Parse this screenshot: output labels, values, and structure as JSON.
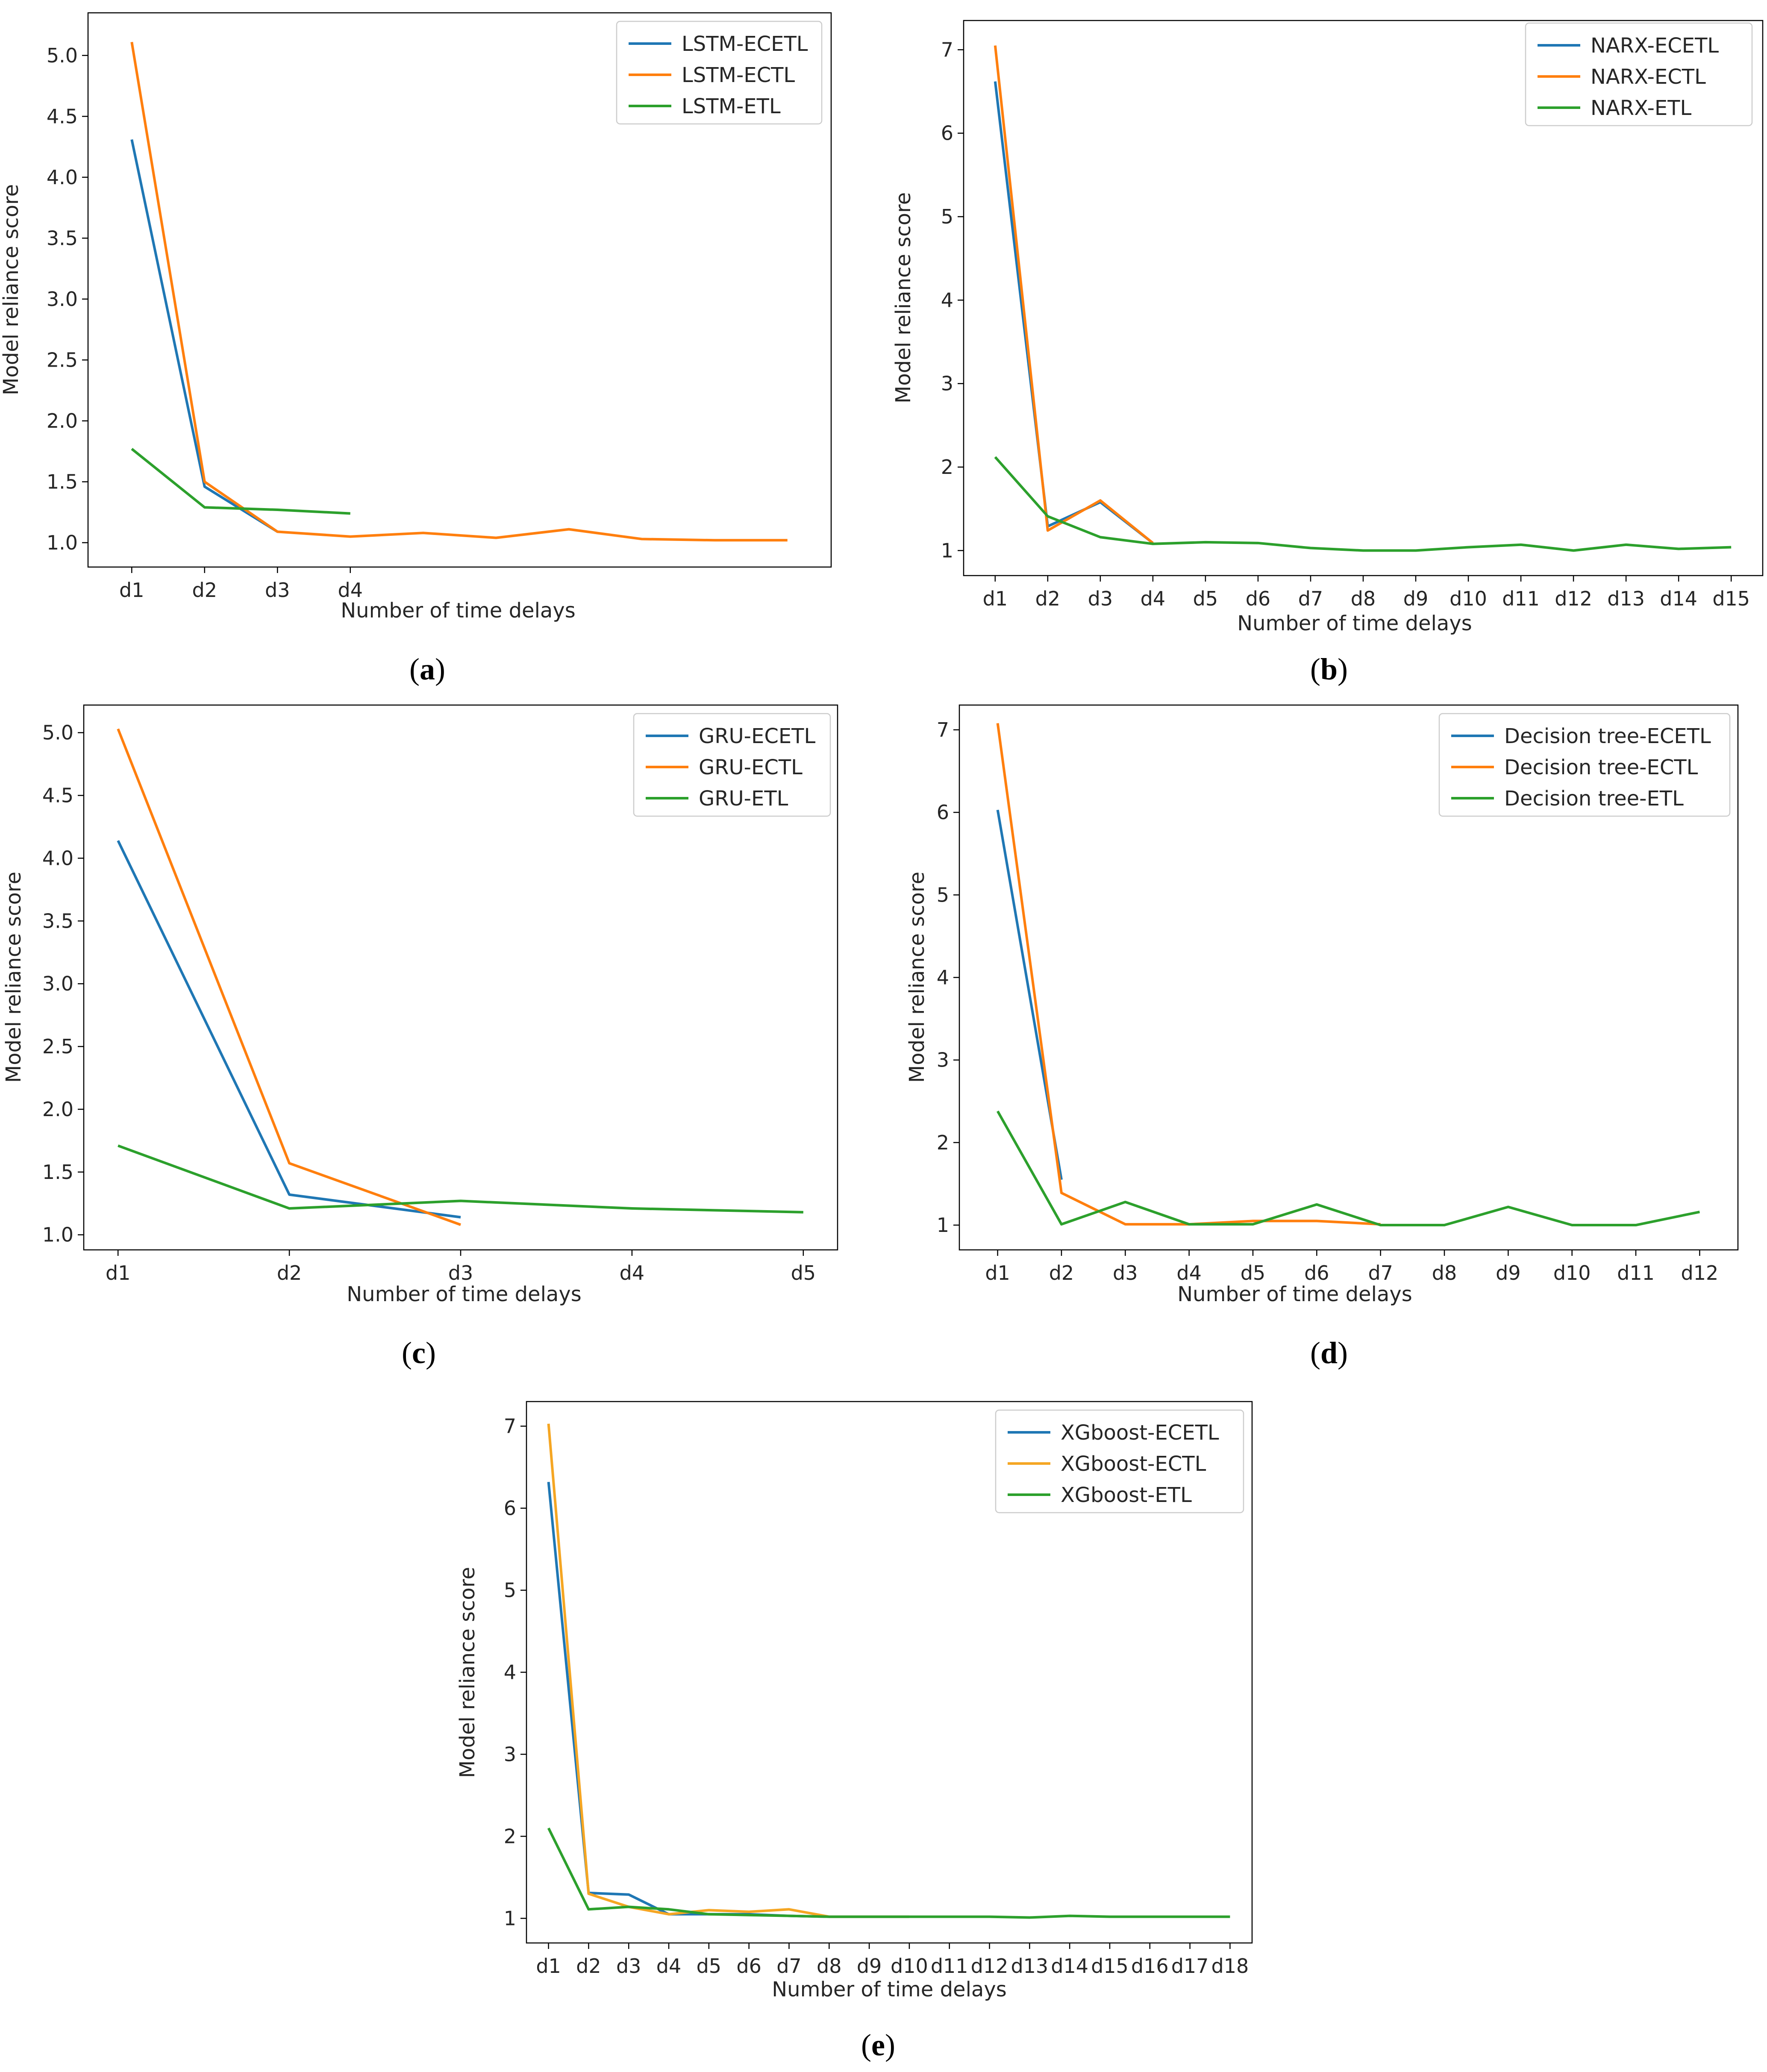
{
  "figure": {
    "captions": [
      {
        "open": "(",
        "letter": "a",
        "close": ")"
      },
      {
        "open": "(",
        "letter": "b",
        "close": ")"
      },
      {
        "open": "(",
        "letter": "c",
        "close": ")"
      },
      {
        "open": "(",
        "letter": "d",
        "close": ")"
      },
      {
        "open": "(",
        "letter": "e",
        "close": ")"
      }
    ]
  },
  "chart_data": [
    {
      "type": "line",
      "title": "",
      "xlabel": "Number of time delays",
      "ylabel": "Model reliance score",
      "categories": [
        "d1",
        "d2",
        "d3",
        "d4"
      ],
      "x_extent": 10,
      "ylim": [
        0.8,
        5.35
      ],
      "yticks": [
        1.0,
        1.5,
        2.0,
        2.5,
        3.0,
        3.5,
        4.0,
        4.5,
        5.0
      ],
      "ytick_labels": [
        "1.0",
        "1.5",
        "2.0",
        "2.5",
        "3.0",
        "3.5",
        "4.0",
        "4.5",
        "5.0"
      ],
      "grid": false,
      "legend_position": "top-right",
      "series": [
        {
          "name": "LSTM-ECETL",
          "color": "#1f77b4",
          "x": [
            1,
            2,
            3
          ],
          "values": [
            4.31,
            1.46,
            1.09
          ]
        },
        {
          "name": "LSTM-ECTL",
          "color": "#ff7f0e",
          "x": [
            1,
            2,
            3,
            4,
            5,
            6,
            7,
            8,
            9,
            10
          ],
          "values": [
            5.11,
            1.5,
            1.09,
            1.05,
            1.08,
            1.04,
            1.11,
            1.03,
            1.02,
            1.02
          ]
        },
        {
          "name": "LSTM-ETL",
          "color": "#2ca02c",
          "x": [
            1,
            2,
            3,
            4
          ],
          "values": [
            1.77,
            1.29,
            1.27,
            1.24
          ]
        }
      ]
    },
    {
      "type": "line",
      "title": "",
      "xlabel": "Number of time delays",
      "ylabel": "Model reliance score",
      "categories": [
        "d1",
        "d2",
        "d3",
        "d4",
        "d5",
        "d6",
        "d7",
        "d8",
        "d9",
        "d10",
        "d11",
        "d12",
        "d13",
        "d14",
        "d15"
      ],
      "x_extent": 15,
      "ylim": [
        0.7,
        7.35
      ],
      "yticks": [
        1,
        2,
        3,
        4,
        5,
        6,
        7
      ],
      "ytick_labels": [
        "1",
        "2",
        "3",
        "4",
        "5",
        "6",
        "7"
      ],
      "grid": false,
      "legend_position": "top-right",
      "series": [
        {
          "name": "NARX-ECETL",
          "color": "#1f77b4",
          "x": [
            1,
            2,
            3,
            4
          ],
          "values": [
            6.62,
            1.29,
            1.58,
            1.09
          ]
        },
        {
          "name": "NARX-ECTL",
          "color": "#ff7f0e",
          "x": [
            1,
            2,
            3,
            4
          ],
          "values": [
            7.05,
            1.24,
            1.6,
            1.09
          ]
        },
        {
          "name": "NARX-ETL",
          "color": "#2ca02c",
          "x": [
            1,
            2,
            3,
            4,
            5,
            6,
            7,
            8,
            9,
            10,
            11,
            12,
            13,
            14,
            15
          ],
          "values": [
            2.12,
            1.41,
            1.16,
            1.08,
            1.1,
            1.09,
            1.03,
            1.0,
            1.0,
            1.04,
            1.07,
            1.0,
            1.07,
            1.02,
            1.04
          ]
        }
      ]
    },
    {
      "type": "line",
      "title": "",
      "xlabel": "Number of time delays",
      "ylabel": "Model reliance score",
      "categories": [
        "d1",
        "d2",
        "d3",
        "d4",
        "d5"
      ],
      "x_extent": 5,
      "ylim": [
        0.88,
        5.22
      ],
      "yticks": [
        1.0,
        1.5,
        2.0,
        2.5,
        3.0,
        3.5,
        4.0,
        4.5,
        5.0
      ],
      "ytick_labels": [
        "1.0",
        "1.5",
        "2.0",
        "2.5",
        "3.0",
        "3.5",
        "4.0",
        "4.5",
        "5.0"
      ],
      "grid": false,
      "legend_position": "top-right",
      "series": [
        {
          "name": "GRU-ECETL",
          "color": "#1f77b4",
          "x": [
            1,
            2,
            3
          ],
          "values": [
            4.14,
            1.32,
            1.14
          ]
        },
        {
          "name": "GRU-ECTL",
          "color": "#ff7f0e",
          "x": [
            1,
            2,
            3
          ],
          "values": [
            5.03,
            1.57,
            1.08
          ]
        },
        {
          "name": "GRU-ETL",
          "color": "#2ca02c",
          "x": [
            1,
            2,
            3,
            4,
            5
          ],
          "values": [
            1.71,
            1.21,
            1.27,
            1.21,
            1.18
          ]
        }
      ]
    },
    {
      "type": "line",
      "title": "",
      "xlabel": "Number of time delays",
      "ylabel": "Model reliance score",
      "categories": [
        "d1",
        "d2",
        "d3",
        "d4",
        "d5",
        "d6",
        "d7",
        "d8",
        "d9",
        "d10",
        "d11",
        "d12"
      ],
      "x_extent": 12,
      "ylim": [
        0.7,
        7.3
      ],
      "yticks": [
        1,
        2,
        3,
        4,
        5,
        6,
        7
      ],
      "ytick_labels": [
        "1",
        "2",
        "3",
        "4",
        "5",
        "6",
        "7"
      ],
      "grid": false,
      "legend_position": "top-right",
      "series": [
        {
          "name": "Decision tree-ECETL",
          "color": "#1f77b4",
          "x": [
            1,
            2
          ],
          "values": [
            6.03,
            1.55
          ]
        },
        {
          "name": "Decision tree-ECTL",
          "color": "#ff7f0e",
          "x": [
            1,
            2,
            3,
            4,
            5,
            6,
            7
          ],
          "values": [
            7.08,
            1.39,
            1.01,
            1.01,
            1.05,
            1.05,
            1.01
          ]
        },
        {
          "name": "Decision tree-ETL",
          "color": "#2ca02c",
          "x": [
            1,
            2,
            3,
            4,
            5,
            6,
            7,
            8,
            9,
            10,
            11,
            12
          ],
          "values": [
            2.38,
            1.01,
            1.28,
            1.01,
            1.01,
            1.25,
            1.0,
            1.0,
            1.22,
            1.0,
            1.0,
            1.16
          ]
        }
      ]
    },
    {
      "type": "line",
      "title": "",
      "xlabel": "Number of time delays",
      "ylabel": "Model reliance score",
      "categories": [
        "d1",
        "d2",
        "d3",
        "d4",
        "d5",
        "d6",
        "d7",
        "d8",
        "d9",
        "d10",
        "d11",
        "d12",
        "d13",
        "d14",
        "d15",
        "d16",
        "d17",
        "d18"
      ],
      "x_extent": 18,
      "ylim": [
        0.7,
        7.3
      ],
      "yticks": [
        1,
        2,
        3,
        4,
        5,
        6,
        7
      ],
      "ytick_labels": [
        "1",
        "2",
        "3",
        "4",
        "5",
        "6",
        "7"
      ],
      "grid": false,
      "legend_position": "top-right",
      "series": [
        {
          "name": "XGboost-ECETL",
          "color": "#1f77b4",
          "x": [
            1,
            2,
            3,
            4,
            5,
            6,
            7,
            8,
            9,
            10
          ],
          "values": [
            6.32,
            1.31,
            1.29,
            1.05,
            1.05,
            1.05,
            1.03,
            1.02,
            1.02,
            1.02
          ]
        },
        {
          "name": "XGboost-ECTL",
          "color": "#f5a623",
          "x": [
            1,
            2,
            3,
            4,
            5,
            6,
            7,
            8,
            9,
            10
          ],
          "values": [
            7.03,
            1.3,
            1.14,
            1.05,
            1.1,
            1.08,
            1.11,
            1.02,
            1.02,
            1.02
          ]
        },
        {
          "name": "XGboost-ETL",
          "color": "#2ca02c",
          "x": [
            1,
            2,
            3,
            4,
            5,
            6,
            7,
            8,
            9,
            10,
            11,
            12,
            13,
            14,
            15,
            16,
            17,
            18
          ],
          "values": [
            2.1,
            1.11,
            1.14,
            1.11,
            1.05,
            1.04,
            1.03,
            1.02,
            1.02,
            1.02,
            1.02,
            1.02,
            1.01,
            1.03,
            1.02,
            1.02,
            1.02,
            1.02
          ]
        }
      ]
    }
  ]
}
